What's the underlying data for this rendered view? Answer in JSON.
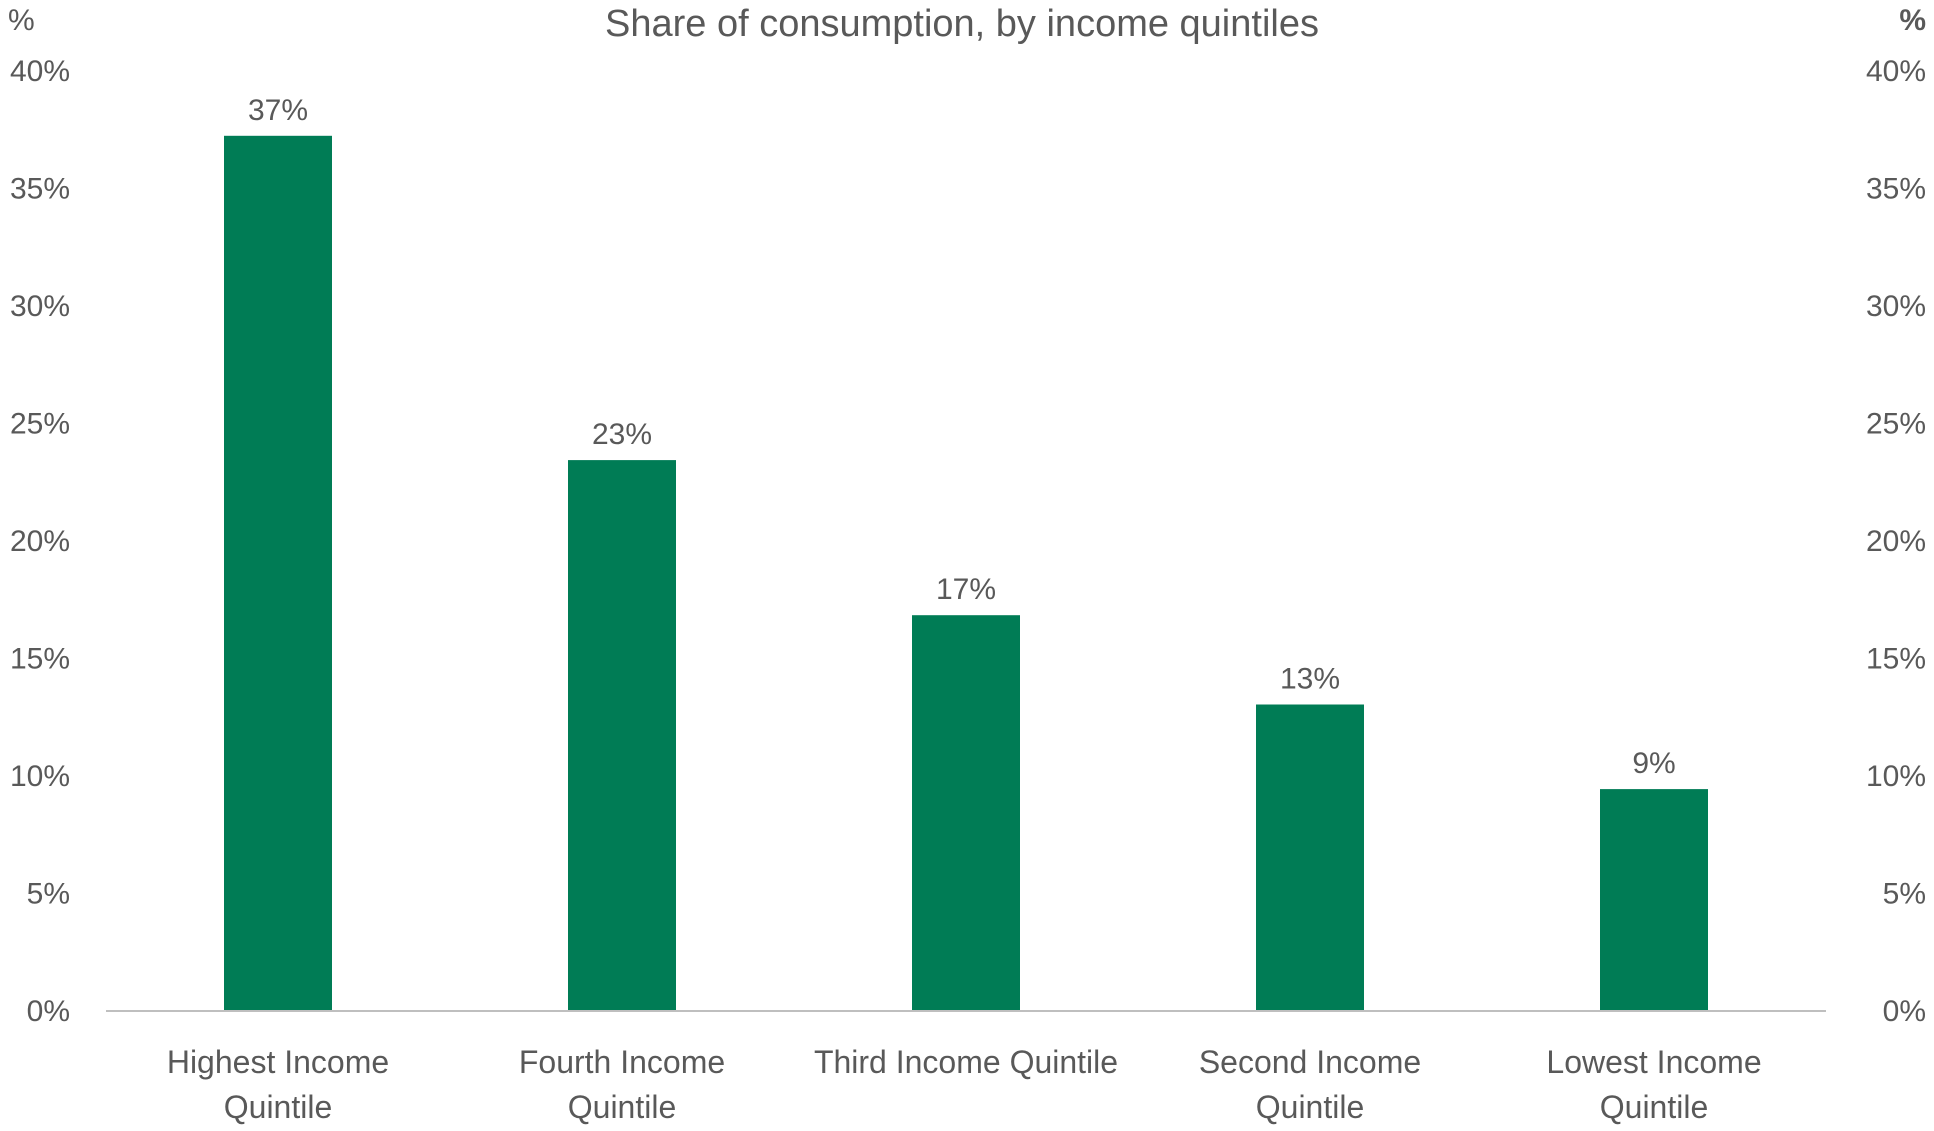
{
  "chart_data": {
    "type": "bar",
    "title": "Share of consumption, by income quintiles",
    "ylabel_left": "%",
    "ylabel_right": "%",
    "categories": [
      [
        "Highest Income",
        "Quintile"
      ],
      [
        "Fourth Income",
        "Quintile"
      ],
      [
        "Third Income Quintile"
      ],
      [
        "Second Income",
        "Quintile"
      ],
      [
        "Lowest Income",
        "Quintile"
      ]
    ],
    "values": [
      37.2,
      23.4,
      16.8,
      13.0,
      9.4
    ],
    "data_labels": [
      "37%",
      "23%",
      "17%",
      "13%",
      "9%"
    ],
    "ylim": [
      0,
      40
    ],
    "yticks": [
      0,
      5,
      10,
      15,
      20,
      25,
      30,
      35,
      40
    ],
    "ytick_labels": [
      "0%",
      "5%",
      "10%",
      "15%",
      "20%",
      "25%",
      "30%",
      "35%",
      "40%"
    ],
    "grid": false,
    "legend": "none",
    "colors": {
      "bar": "#007C55",
      "text": "#595959",
      "axis": "#BFBFBF"
    }
  }
}
